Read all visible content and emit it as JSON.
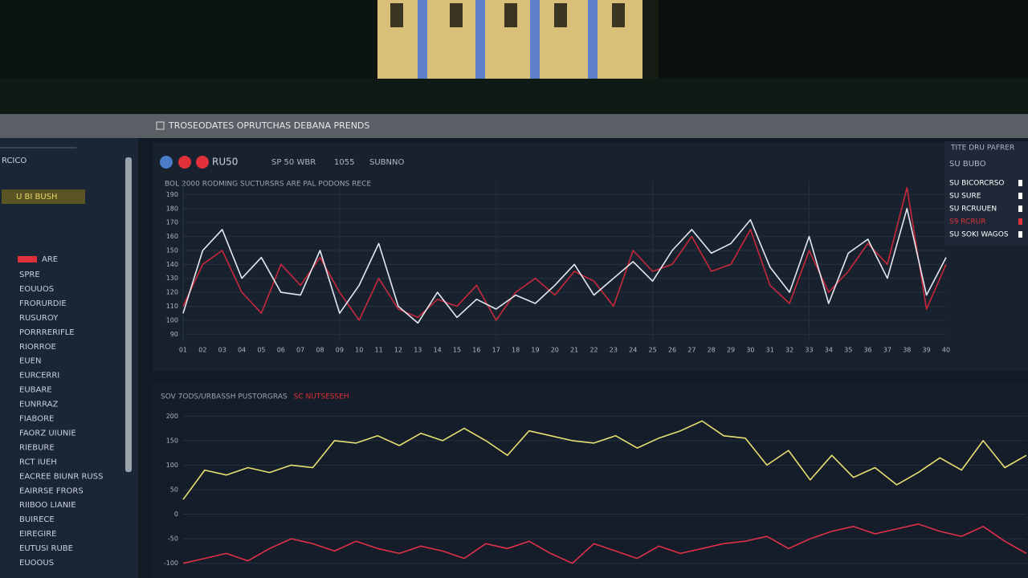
{
  "header": {
    "title": "TROSEODATES OPRUTCHAS DEBANA PRENDS"
  },
  "sidebar": {
    "top": "RCICO",
    "selected": "U BI BUSH",
    "flagged": "ARE",
    "items": [
      "SPRE",
      "EOUUOS",
      "FRORURDIE",
      "RUSUROY",
      "PORRRERIFLE",
      "RIORROE",
      "EUEN",
      "EURCERRI",
      "EUBARE",
      "EUNRRAZ",
      "FIABORE",
      "FAORZ UIUNIE",
      "RIEBURE",
      "RCT IUEH",
      "EACREE BIUNR RUSS",
      "EAIRRSE FRORS",
      "RIIBOO LIANIE",
      "BUIRECE",
      "EIREGIRE",
      "EUTUSI RUBE",
      "EUOOUS"
    ]
  },
  "toolbar": {
    "label": "RU50",
    "tabs": [
      "SP 50 WBR",
      "1055",
      "SUBNNO"
    ]
  },
  "legend": {
    "title": "TITE DRU PAFRER",
    "subtitle": "SU BUBO",
    "items": [
      {
        "label": "SU BICORCRSO",
        "color": "#ffffff"
      },
      {
        "label": "SU SURE",
        "color": "#ffffff"
      },
      {
        "label": "SU RCRUUEN",
        "color": "#ffffff"
      },
      {
        "label": "S9 RCRUR",
        "color": "#e0303a"
      },
      {
        "label": "SU SOKI WAGOS",
        "color": "#ffffff"
      }
    ]
  },
  "chart_data": [
    {
      "type": "line",
      "title": "BOL 2000 RODMING SUCTURSRS ARE PAL PODONS RECE",
      "categories": [
        "01",
        "02",
        "03",
        "04",
        "05",
        "06",
        "07",
        "08",
        "09",
        "10",
        "11",
        "12",
        "13",
        "14",
        "15",
        "16",
        "17",
        "18",
        "19",
        "20",
        "21",
        "22",
        "23",
        "24",
        "25",
        "26",
        "27",
        "28",
        "29",
        "30",
        "31",
        "32",
        "33",
        "34",
        "35",
        "36",
        "37",
        "38",
        "39",
        "40"
      ],
      "series": [
        {
          "name": "SU BICORCRSO",
          "color": "#e6e8ee",
          "values": [
            105,
            150,
            165,
            130,
            145,
            120,
            118,
            150,
            105,
            125,
            155,
            110,
            98,
            120,
            102,
            115,
            108,
            118,
            112,
            125,
            140,
            118,
            130,
            142,
            128,
            150,
            165,
            148,
            155,
            172,
            138,
            120,
            160,
            112,
            148,
            158,
            130,
            180,
            118,
            145
          ]
        },
        {
          "name": "S9 RCRUR",
          "color": "#c8283a",
          "values": [
            110,
            140,
            150,
            120,
            105,
            140,
            125,
            145,
            120,
            100,
            130,
            108,
            102,
            115,
            110,
            125,
            100,
            120,
            130,
            118,
            135,
            128,
            110,
            150,
            135,
            140,
            160,
            135,
            140,
            165,
            125,
            112,
            150,
            120,
            135,
            155,
            140,
            195,
            108,
            140
          ]
        }
      ],
      "ylim": [
        85,
        200
      ],
      "yticks": [
        90,
        100,
        110,
        120,
        130,
        140,
        150,
        160,
        170,
        180,
        190
      ],
      "grid": true
    },
    {
      "type": "line",
      "title": "SOV 7ODS/URBASSH PUSTORGRAS",
      "annotation": "SC NUTSESSEH",
      "series": [
        {
          "name": "SOV",
          "color": "#e8e070",
          "values": [
            30,
            90,
            80,
            95,
            85,
            100,
            95,
            150,
            145,
            160,
            140,
            165,
            150,
            175,
            150,
            120,
            170,
            160,
            150,
            145,
            160,
            135,
            155,
            170,
            190,
            160,
            155,
            100,
            130,
            70,
            120,
            75,
            95,
            60,
            85,
            115,
            90,
            150,
            95,
            120
          ]
        },
        {
          "name": "SC",
          "color": "#e0304a",
          "values": [
            -100,
            -90,
            -80,
            -95,
            -70,
            -50,
            -60,
            -75,
            -55,
            -70,
            -80,
            -65,
            -75,
            -90,
            -60,
            -70,
            -55,
            -80,
            -100,
            -60,
            -75,
            -90,
            -65,
            -80,
            -70,
            -60,
            -55,
            -45,
            -70,
            -50,
            -35,
            -25,
            -40,
            -30,
            -20,
            -35,
            -45,
            -25,
            -55,
            -80
          ]
        }
      ],
      "ylim": [
        -130,
        230
      ],
      "yticks": [
        -100,
        -50,
        0,
        50,
        100,
        150,
        200
      ],
      "grid": true
    }
  ]
}
